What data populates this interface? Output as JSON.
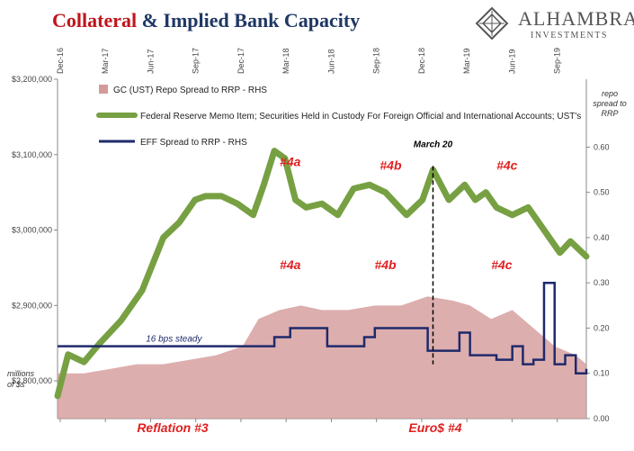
{
  "header": {
    "title_part1": "Collateral",
    "title_part2": "& Implied Bank Capacity"
  },
  "logo": {
    "brand": "ALHAMBRA",
    "sub": "INVESTMENTS"
  },
  "chart_data": {
    "type": "line",
    "x_tick_labels": [
      "Dec-16",
      "Mar-17",
      "Jun-17",
      "Sep-17",
      "Dec-17",
      "Mar-18",
      "Jun-18",
      "Sep-18",
      "Dec-18",
      "Mar-19",
      "Jun-19",
      "Sep-19"
    ],
    "y_left": {
      "min": 2750000,
      "max": 3200000,
      "ticks": [
        "$3,200,000",
        "$3,100,000",
        "$3,000,000",
        "$2,900,000",
        "$2,800,000"
      ],
      "tick_values": [
        3200000,
        3100000,
        3000000,
        2900000,
        2800000
      ],
      "unit_label": [
        "millions",
        "of $s"
      ]
    },
    "y_right": {
      "min": 0,
      "max": 0.75,
      "ticks": [
        "0.60",
        "0.50",
        "0.40",
        "0.30",
        "0.20",
        "0.10",
        "0.00"
      ],
      "tick_values": [
        0.6,
        0.5,
        0.4,
        0.3,
        0.2,
        0.1,
        0.0
      ],
      "label": [
        "repo",
        "spread to",
        "RRP"
      ]
    },
    "legend": {
      "placement": "top-left",
      "items": [
        {
          "label": "GC (UST) Repo Spread to RRP - RHS",
          "color": "#d49a9a"
        },
        {
          "label": "Federal Reserve Memo Item; Securities Held in Custody For Foreign Official and International Accounts; UST's",
          "color": "#77a043"
        },
        {
          "label": "EFF Spread to RRP - RHS",
          "color": "#1f2a6b"
        }
      ]
    },
    "series": [
      {
        "name": "Federal Reserve Memo Item; Securities Held in Custody For Foreign Official and International Accounts; UST's",
        "axis": "left",
        "color": "#77a043",
        "x": [
          0,
          0.02,
          0.05,
          0.08,
          0.12,
          0.16,
          0.2,
          0.23,
          0.26,
          0.28,
          0.31,
          0.34,
          0.37,
          0.39,
          0.41,
          0.43,
          0.45,
          0.47,
          0.5,
          0.53,
          0.56,
          0.59,
          0.62,
          0.66,
          0.69,
          0.71,
          0.74,
          0.77,
          0.79,
          0.81,
          0.83,
          0.86,
          0.89,
          0.92,
          0.95,
          0.97,
          1.0
        ],
        "values": [
          2780000,
          2835000,
          2825000,
          2850000,
          2880000,
          2920000,
          2990000,
          3010000,
          3040000,
          3045000,
          3045000,
          3035000,
          3020000,
          3060000,
          3105000,
          3095000,
          3040000,
          3030000,
          3035000,
          3020000,
          3055000,
          3060000,
          3050000,
          3020000,
          3040000,
          3080000,
          3040000,
          3060000,
          3040000,
          3050000,
          3030000,
          3020000,
          3030000,
          3000000,
          2970000,
          2985000,
          2965000
        ]
      },
      {
        "name": "EFF Spread to RRP - RHS",
        "axis": "right",
        "color": "#1f2a6b",
        "x": [
          0,
          0.4,
          0.41,
          0.44,
          0.48,
          0.51,
          0.58,
          0.6,
          0.65,
          0.7,
          0.75,
          0.76,
          0.78,
          0.8,
          0.83,
          0.86,
          0.88,
          0.9,
          0.92,
          0.94,
          0.96,
          0.98,
          1.0
        ],
        "values": [
          0.16,
          0.16,
          0.18,
          0.2,
          0.2,
          0.16,
          0.18,
          0.2,
          0.2,
          0.15,
          0.15,
          0.19,
          0.14,
          0.14,
          0.13,
          0.16,
          0.12,
          0.13,
          0.3,
          0.12,
          0.14,
          0.1,
          0.11
        ]
      },
      {
        "name": "GC (UST) Repo Spread to RRP - RHS",
        "axis": "right",
        "color": "#d49a9a",
        "type": "area",
        "x": [
          0,
          0.05,
          0.1,
          0.15,
          0.2,
          0.25,
          0.3,
          0.35,
          0.38,
          0.42,
          0.46,
          0.5,
          0.55,
          0.6,
          0.65,
          0.7,
          0.75,
          0.78,
          0.82,
          0.86,
          0.9,
          0.94,
          0.98,
          1.0
        ],
        "values": [
          0.1,
          0.1,
          0.11,
          0.12,
          0.12,
          0.13,
          0.14,
          0.16,
          0.22,
          0.24,
          0.25,
          0.24,
          0.24,
          0.25,
          0.25,
          0.27,
          0.26,
          0.25,
          0.22,
          0.24,
          0.2,
          0.16,
          0.14,
          0.12
        ]
      }
    ],
    "annotations": [
      {
        "text": "#4a",
        "x": 0.44,
        "axis": "left",
        "y": 3085000
      },
      {
        "text": "#4b",
        "x": 0.63,
        "axis": "left",
        "y": 3080000
      },
      {
        "text": "#4c",
        "x": 0.85,
        "axis": "left",
        "y": 3080000
      },
      {
        "text": "#4a",
        "x": 0.44,
        "axis": "right",
        "y": 0.33
      },
      {
        "text": "#4b",
        "x": 0.62,
        "axis": "right",
        "y": 0.33
      },
      {
        "text": "#4c",
        "x": 0.84,
        "axis": "right",
        "y": 0.33
      },
      {
        "text": "March 20",
        "x": 0.71,
        "axis": "left",
        "y": 3110000
      },
      {
        "text": "16 bps steady",
        "x": 0.22,
        "axis": "right",
        "y": 0.17
      }
    ],
    "bottom_labels": [
      "Reflation #3",
      "Euro$ #4"
    ]
  }
}
